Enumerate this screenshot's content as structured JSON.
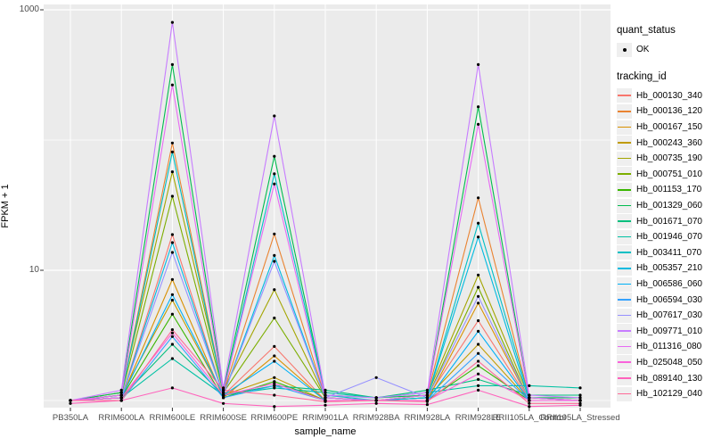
{
  "figure": {
    "background": "#FFFFFF",
    "panel_background": "#EBEBEB",
    "grid_color": "#FFFFFF",
    "point_color": "#000000",
    "tick_color": "#333333",
    "axis_text_color": "#4D4D4D"
  },
  "chart_data": {
    "type": "line",
    "title": "",
    "xlabel": "sample_name",
    "ylabel": "FPKM + 1",
    "y_scale": "log10",
    "ylim": [
      0.85,
      1150
    ],
    "y_ticks": [
      {
        "label": "10",
        "value": 10
      },
      {
        "label": "1000",
        "value": 1000
      }
    ],
    "y_minor_gridlines": [
      1,
      100
    ],
    "grid": true,
    "legend_position": "right",
    "categories": [
      "PB350LA",
      "RRIM600LA",
      "RRIM600LE",
      "RRIM600SE",
      "RRIM600PE",
      "RRIM901LA",
      "RRIM928BA",
      "RRIM928LA",
      "RRIM928LE",
      "RRII105LA_Control",
      "RRII105LA_Stressed"
    ],
    "series": [
      {
        "name": "Hb_000130_340",
        "color": "#F8766D",
        "values": [
          1.0,
          1.05,
          18.8,
          1.1,
          2.6,
          1.0,
          1.0,
          1.05,
          4.1,
          1.0,
          1.0
        ]
      },
      {
        "name": "Hb_000136_120",
        "color": "#EA8331",
        "values": [
          1.0,
          1.1,
          95,
          1.15,
          19,
          1.05,
          1.0,
          1.1,
          36,
          1.05,
          1.0
        ]
      },
      {
        "name": "Hb_000167_150",
        "color": "#D89000",
        "values": [
          1.0,
          1.05,
          8.5,
          1.05,
          2.2,
          1.0,
          1.0,
          1.0,
          5.6,
          1.0,
          1.0
        ]
      },
      {
        "name": "Hb_000243_360",
        "color": "#C09B00",
        "values": [
          1.0,
          1.1,
          5.9,
          1.1,
          1.5,
          1.0,
          1.0,
          1.05,
          2.7,
          1.0,
          1.0
        ]
      },
      {
        "name": "Hb_000735_190",
        "color": "#A3A500",
        "values": [
          1.0,
          1.15,
          57,
          1.2,
          7.1,
          1.05,
          1.0,
          1.1,
          9.2,
          1.05,
          1.0
        ]
      },
      {
        "name": "Hb_000751_010",
        "color": "#7CAE00",
        "values": [
          1.0,
          1.1,
          37,
          1.15,
          4.3,
          1.05,
          1.0,
          1.05,
          7.4,
          1.0,
          1.0
        ]
      },
      {
        "name": "Hb_001153_170",
        "color": "#39B600",
        "values": [
          1.0,
          1.05,
          4.6,
          1.05,
          1.4,
          1.0,
          1.0,
          1.0,
          1.85,
          1.0,
          1.0
        ]
      },
      {
        "name": "Hb_001329_060",
        "color": "#00BB4E",
        "values": [
          1.0,
          1.15,
          380,
          1.2,
          75,
          1.1,
          1.05,
          1.1,
          180,
          1.05,
          1.05
        ]
      },
      {
        "name": "Hb_001671_070",
        "color": "#00BF7D",
        "values": [
          1.0,
          1.05,
          2.7,
          1.1,
          1.3,
          1.2,
          1.05,
          1.2,
          1.45,
          1.1,
          1.1
        ]
      },
      {
        "name": "Hb_001946_070",
        "color": "#00C1A3",
        "values": [
          1.0,
          1.05,
          2.1,
          1.1,
          1.25,
          1.15,
          1.05,
          1.15,
          1.3,
          1.3,
          1.25
        ]
      },
      {
        "name": "Hb_003411_070",
        "color": "#00BFC4",
        "values": [
          1.0,
          1.1,
          81,
          1.15,
          55,
          1.1,
          1.0,
          1.05,
          23,
          1.05,
          1.0
        ]
      },
      {
        "name": "Hb_005357_210",
        "color": "#00BAE0",
        "values": [
          1.0,
          1.05,
          16.3,
          1.1,
          13,
          1.05,
          1.0,
          1.05,
          18,
          1.0,
          1.0
        ]
      },
      {
        "name": "Hb_006586_060",
        "color": "#00B0F6",
        "values": [
          1.0,
          1.05,
          6.5,
          1.1,
          2.0,
          1.0,
          1.0,
          1.0,
          3.4,
          1.0,
          1.0
        ]
      },
      {
        "name": "Hb_006594_030",
        "color": "#35A2FF",
        "values": [
          1.0,
          1.0,
          3.1,
          1.05,
          1.3,
          1.0,
          1.0,
          1.0,
          2.3,
          1.0,
          1.0
        ]
      },
      {
        "name": "Hb_007617_030",
        "color": "#9590FF",
        "values": [
          1.0,
          1.05,
          13.7,
          1.1,
          11.7,
          1.05,
          1.5,
          1.05,
          6.3,
          1.0,
          1.0
        ]
      },
      {
        "name": "Hb_009771_010",
        "color": "#C77CFF",
        "values": [
          1.0,
          1.2,
          800,
          1.25,
          153,
          1.1,
          1.05,
          1.15,
          380,
          1.1,
          1.05
        ]
      },
      {
        "name": "Hb_011316_080",
        "color": "#E76BF3",
        "values": [
          1.0,
          1.1,
          265,
          1.15,
          46,
          1.05,
          1.0,
          1.1,
          132,
          1.05,
          1.0
        ]
      },
      {
        "name": "Hb_025048_050",
        "color": "#FA62DB",
        "values": [
          1.0,
          1.05,
          3.3,
          1.1,
          1.35,
          1.0,
          1.0,
          1.0,
          1.6,
          1.0,
          1.0
        ]
      },
      {
        "name": "Hb_089140_130",
        "color": "#FF62BC",
        "values": [
          0.95,
          1.0,
          1.25,
          0.95,
          0.9,
          0.92,
          0.95,
          0.93,
          1.2,
          0.9,
          0.92
        ]
      },
      {
        "name": "Hb_102129_040",
        "color": "#FF6A98",
        "values": [
          1.0,
          1.0,
          3.5,
          1.2,
          1.1,
          0.98,
          1.0,
          0.98,
          2.0,
          0.95,
          0.95
        ]
      }
    ]
  },
  "legend": {
    "quant_status_title": "quant_status",
    "quant_status_items": [
      {
        "label": "OK",
        "marker": "point"
      }
    ],
    "tracking_title": "tracking_id"
  }
}
